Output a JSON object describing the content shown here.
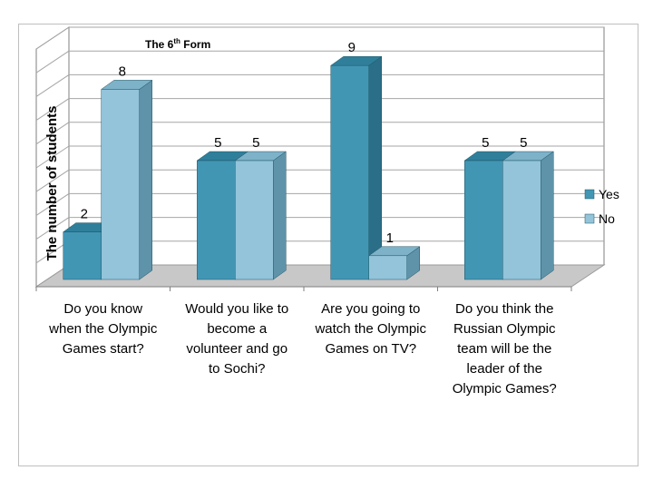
{
  "chart_data": {
    "type": "bar",
    "title": "The 6",
    "title_sup": "th",
    "title_rest": " Form",
    "ylabel": "The number of students",
    "xlabel": "",
    "categories": [
      "Do you know when the Olympic Games start?",
      "Would you like to become a volunteer and go to Sochi?",
      "Are you going to watch the Olympic Games on TV?",
      "Do you think the Russian Olympic team will be the leader of the Olympic Games?"
    ],
    "category_lines": [
      [
        "Do you know",
        "when the Olympic",
        "Games start?"
      ],
      [
        "Would you like to",
        "become a",
        "volunteer and go",
        "to Sochi?"
      ],
      [
        "Are you going to",
        "watch the Olympic",
        "Games on TV?"
      ],
      [
        "Do you think the",
        "Russian Olympic",
        "team will be the",
        "leader of the",
        "Olympic Games?"
      ]
    ],
    "series": [
      {
        "name": "Yes",
        "values": [
          2,
          5,
          9,
          5
        ]
      },
      {
        "name": "No",
        "values": [
          8,
          5,
          1,
          5
        ]
      }
    ],
    "ylim": [
      0,
      10
    ],
    "grid": true,
    "data_labels": true,
    "legend_position": "right",
    "projection": "3d-clustered-column"
  },
  "colors": {
    "yes_front": "#4196b4",
    "yes_side": "#2a6f87",
    "yes_top": "#2f7f9b",
    "no_front": "#93c4d9",
    "no_side": "#5f93aa",
    "no_top": "#7eb2c8",
    "wall": "#ffffff",
    "grid": "#a6a6a6",
    "floor": "#c8c8c8"
  }
}
